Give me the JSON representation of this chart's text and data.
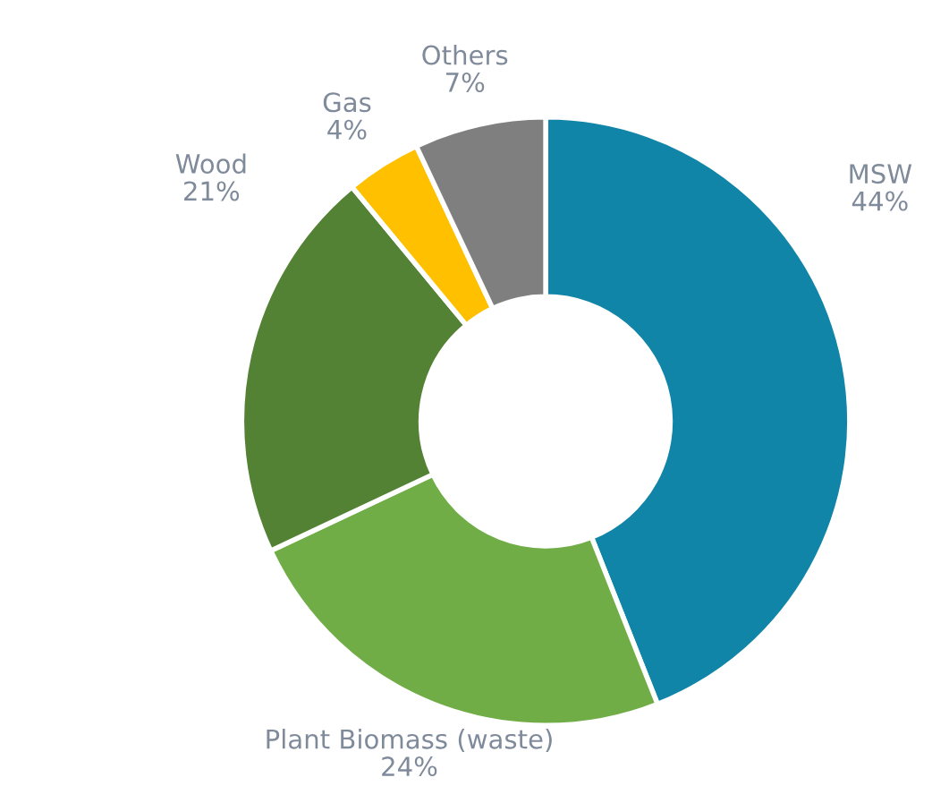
{
  "chart_data": {
    "type": "donut",
    "categories": [
      "MSW",
      "Plant Biomass (waste)",
      "Wood",
      "Gas",
      "Others"
    ],
    "values": [
      44,
      24,
      21,
      4,
      7
    ],
    "value_labels": [
      "44%",
      "24%",
      "21%",
      "4%",
      "7%"
    ],
    "colors": [
      "#1185a8",
      "#70ad47",
      "#548235",
      "#ffc000",
      "#7f7f7f"
    ],
    "legend": false
  }
}
